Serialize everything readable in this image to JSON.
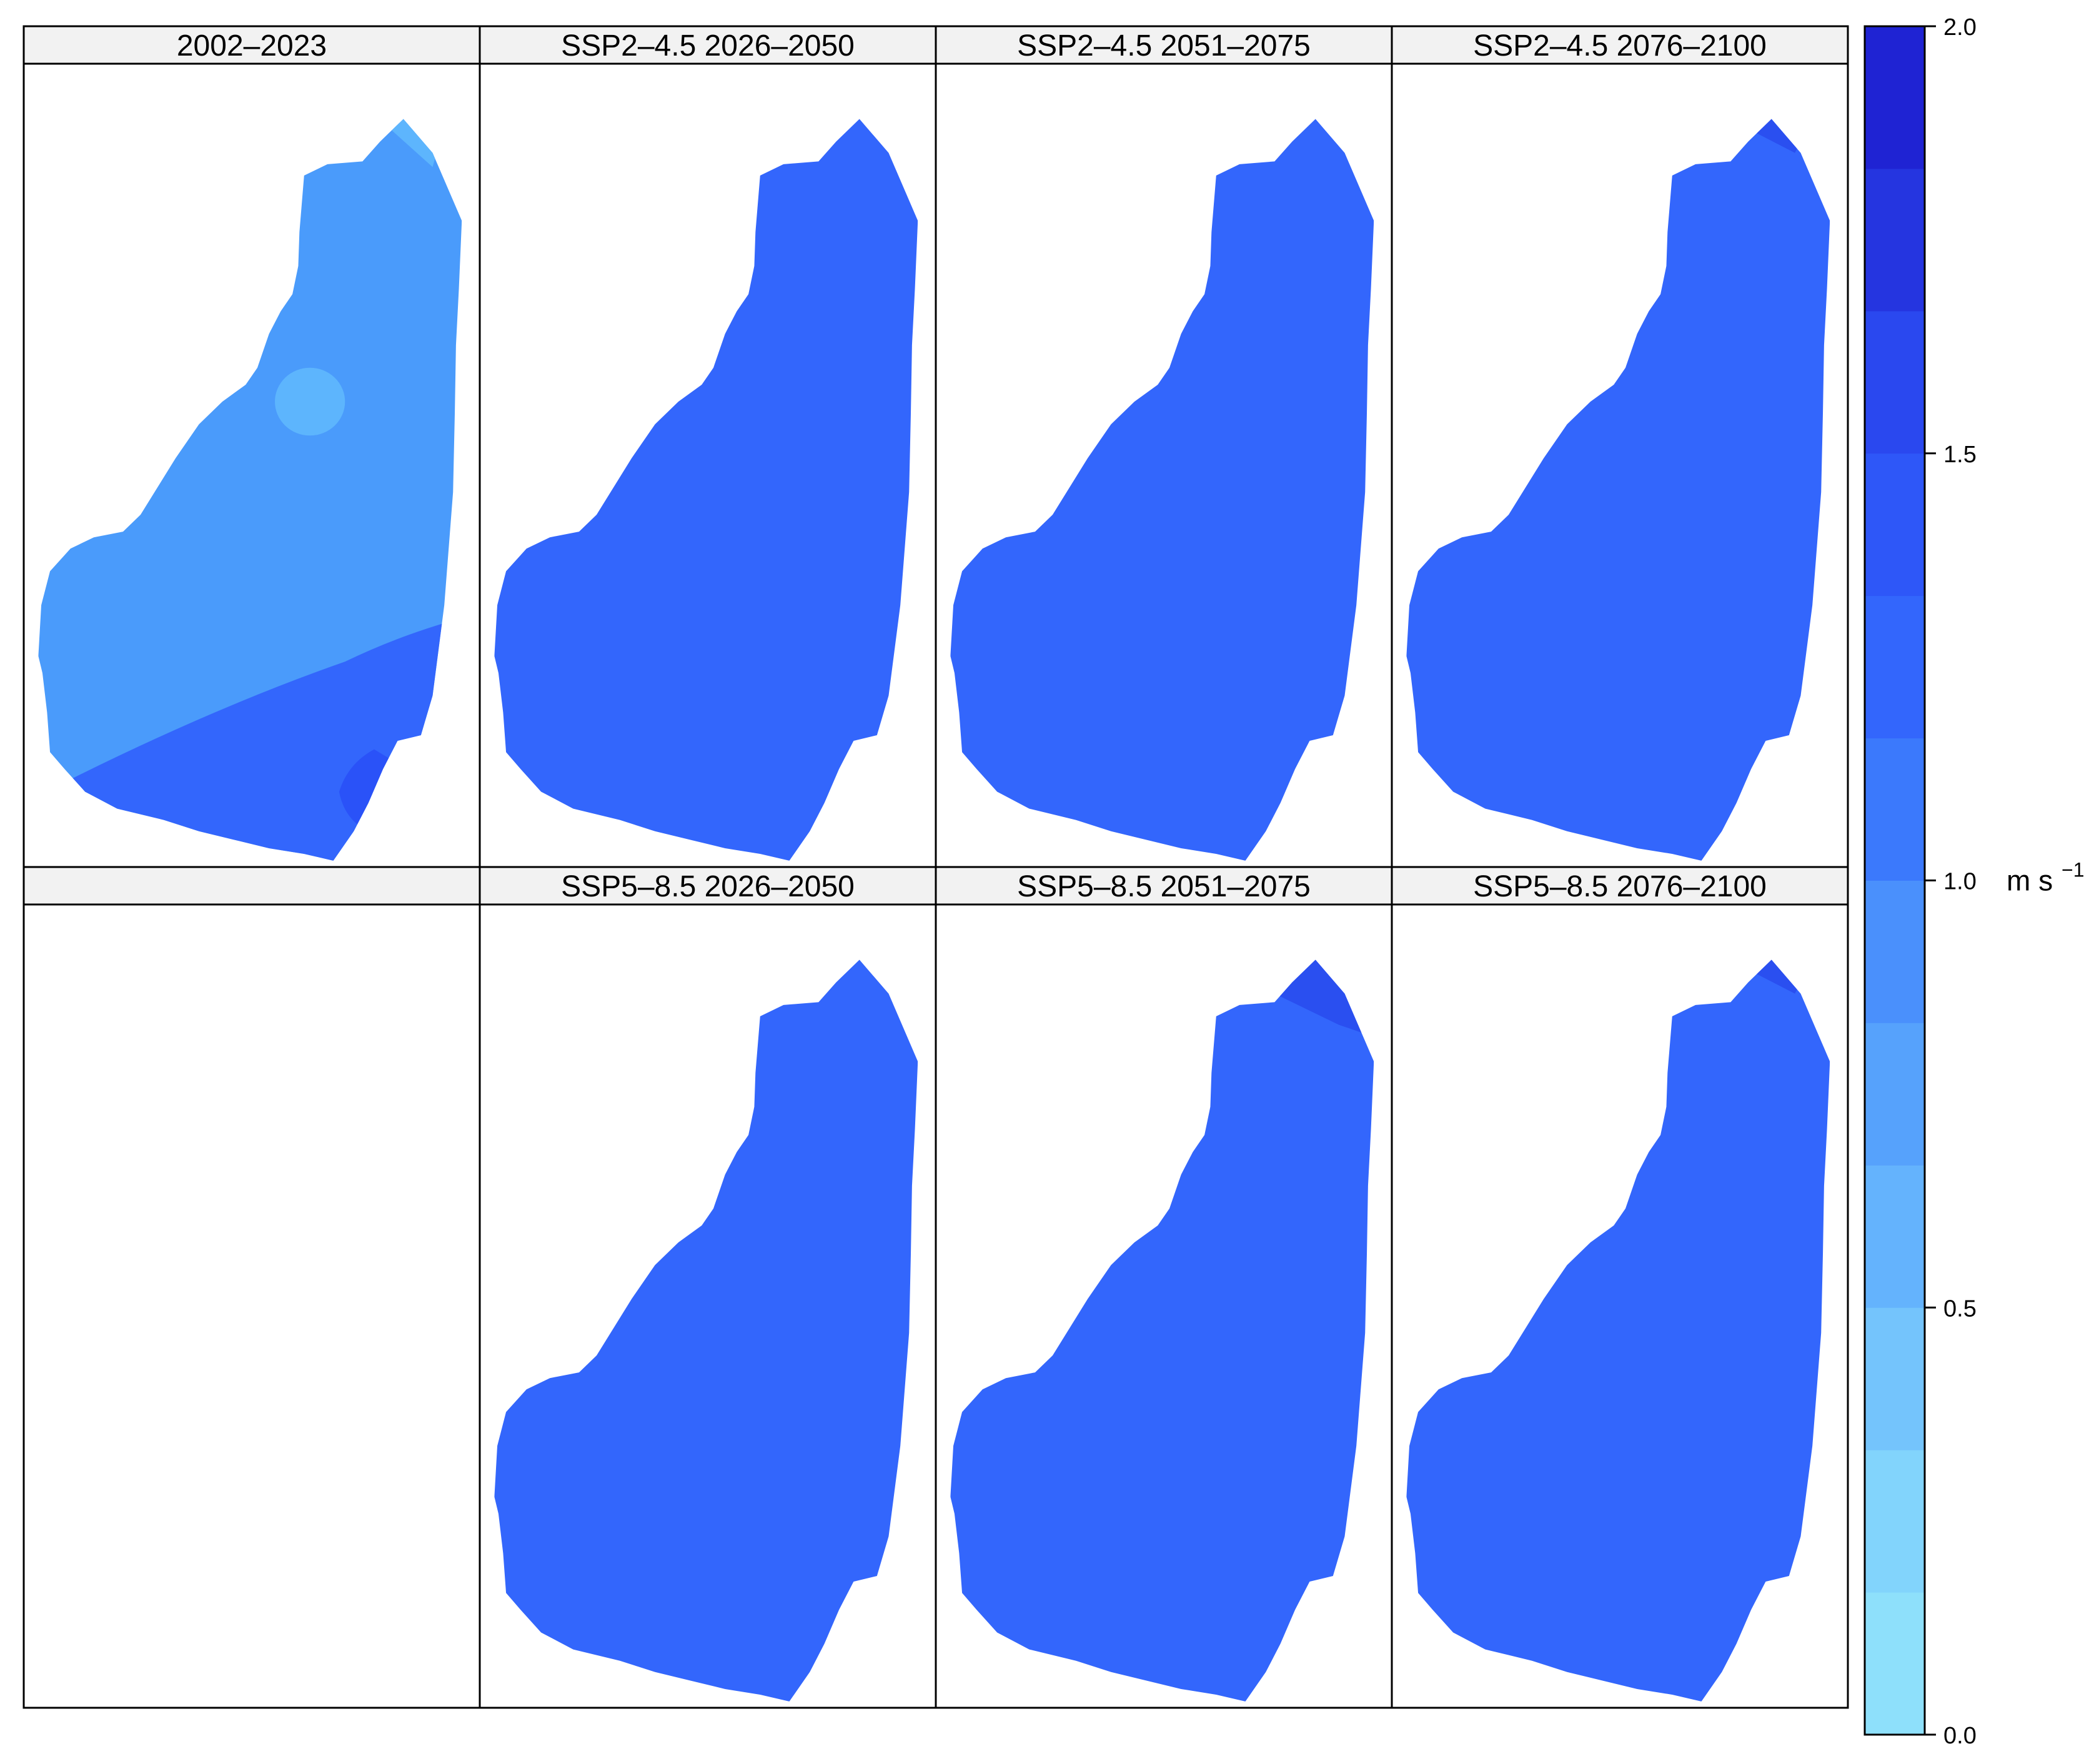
{
  "panels": [
    {
      "title": "2002–2023",
      "field": "baseline"
    },
    {
      "title": "SSP2–4.5 2026–2050",
      "field": "uniform"
    },
    {
      "title": "SSP2–4.5 2051–2075",
      "field": "uniform"
    },
    {
      "title": "SSP2–4.5 2076–2100",
      "field": "uniform_tip"
    },
    {
      "title": "",
      "field": "empty"
    },
    {
      "title": "SSP5–8.5 2026–2050",
      "field": "uniform"
    },
    {
      "title": "SSP5–8.5 2051–2075",
      "field": "uniform_bigtip"
    },
    {
      "title": "SSP5–8.5 2076–2100",
      "field": "uniform_tip"
    }
  ],
  "colorbar": {
    "unit": "m s",
    "unit_exponent": "−1",
    "min": 0.0,
    "max": 2.0,
    "ticks": [
      {
        "value": 0.0,
        "label": "0.0"
      },
      {
        "value": 0.5,
        "label": "0.5"
      },
      {
        "value": 1.0,
        "label": "1.0"
      },
      {
        "value": 1.5,
        "label": "1.5"
      },
      {
        "value": 2.0,
        "label": "2.0"
      }
    ],
    "bins": [
      "#8ee0fb",
      "#82d4fc",
      "#74c4fc",
      "#64b3fd",
      "#56a2fc",
      "#4a90fc",
      "#3b79fc",
      "#3366fc",
      "#2e57f8",
      "#2a48ef",
      "#2535e0",
      "#1f23d3"
    ]
  },
  "field_colors": {
    "baseline_main": "#4a9bfb",
    "baseline_south": "#3366fc",
    "baseline_core": "#2a52f8",
    "baseline_spot": "#5db5fd",
    "baseline_tip": "#5db5fd",
    "projection_main": "#3366fc",
    "projection_tip": "#2a4ff0"
  }
}
